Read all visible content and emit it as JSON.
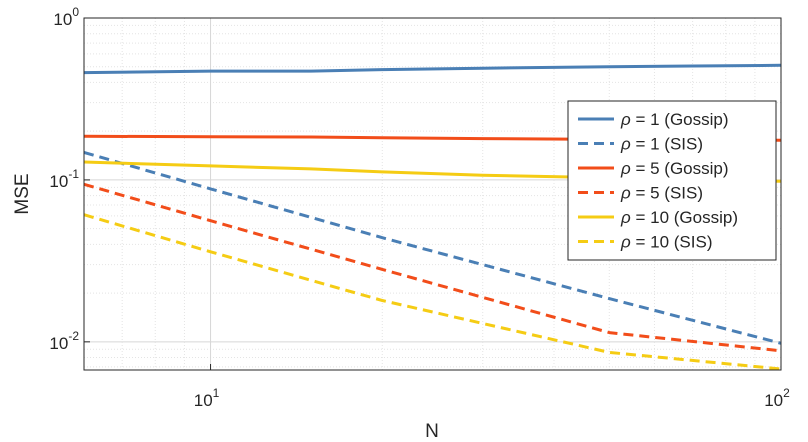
{
  "chart_data": {
    "type": "line",
    "title": "",
    "xlabel": "N",
    "ylabel": "MSE",
    "xscale": "log",
    "yscale": "log",
    "xlim": [
      6,
      100
    ],
    "ylim": [
      0.0067,
      1
    ],
    "grid": true,
    "minor_grid": true,
    "legend_position": "right",
    "x_ticks": [
      {
        "base": "10",
        "exp": "1",
        "value": 10
      },
      {
        "base": "10",
        "exp": "2",
        "value": 100
      }
    ],
    "y_ticks": [
      {
        "base": "10",
        "exp": "-2",
        "value": 0.01
      },
      {
        "base": "10",
        "exp": "-1",
        "value": 0.1
      },
      {
        "base": "10",
        "exp": "0",
        "value": 1
      }
    ],
    "series": [
      {
        "name": "ρ = 1 (Gossip)",
        "symbol": "ρ",
        "rest": " = 1 (Gossip)",
        "color": "#4a7fb5",
        "dash": false,
        "x": [
          6,
          10,
          15,
          20,
          30,
          50,
          70,
          100
        ],
        "y": [
          0.46,
          0.47,
          0.47,
          0.48,
          0.49,
          0.5,
          0.505,
          0.51
        ]
      },
      {
        "name": "ρ = 1 (SIS)",
        "symbol": "ρ",
        "rest": " = 1 (SIS)",
        "color": "#4a7fb5",
        "dash": true,
        "x": [
          6,
          10,
          20,
          50,
          100
        ],
        "y": [
          0.148,
          0.088,
          0.044,
          0.0185,
          0.0098
        ]
      },
      {
        "name": "ρ = 5 (Gossip)",
        "symbol": "ρ",
        "rest": " = 5 (Gossip)",
        "color": "#f24d1a",
        "dash": false,
        "x": [
          6,
          10,
          15,
          20,
          30,
          50,
          70,
          100
        ],
        "y": [
          0.186,
          0.185,
          0.184,
          0.182,
          0.18,
          0.178,
          0.177,
          0.176
        ]
      },
      {
        "name": "ρ = 5 (SIS)",
        "symbol": "ρ",
        "rest": " = 5 (SIS)",
        "color": "#f24d1a",
        "dash": true,
        "x": [
          6,
          10,
          20,
          50,
          100
        ],
        "y": [
          0.094,
          0.056,
          0.028,
          0.0114,
          0.0088
        ]
      },
      {
        "name": "ρ = 10 (Gossip)",
        "symbol": "ρ",
        "rest": " = 10 (Gossip)",
        "color": "#f5cc14",
        "dash": false,
        "x": [
          6,
          10,
          15,
          20,
          30,
          50,
          70,
          100
        ],
        "y": [
          0.129,
          0.122,
          0.117,
          0.112,
          0.107,
          0.103,
          0.1,
          0.098
        ]
      },
      {
        "name": "ρ = 10 (SIS)",
        "symbol": "ρ",
        "rest": " = 10 (SIS)",
        "color": "#f5cc14",
        "dash": true,
        "x": [
          6,
          10,
          20,
          50,
          100
        ],
        "y": [
          0.061,
          0.036,
          0.018,
          0.0086,
          0.0068
        ]
      }
    ]
  }
}
